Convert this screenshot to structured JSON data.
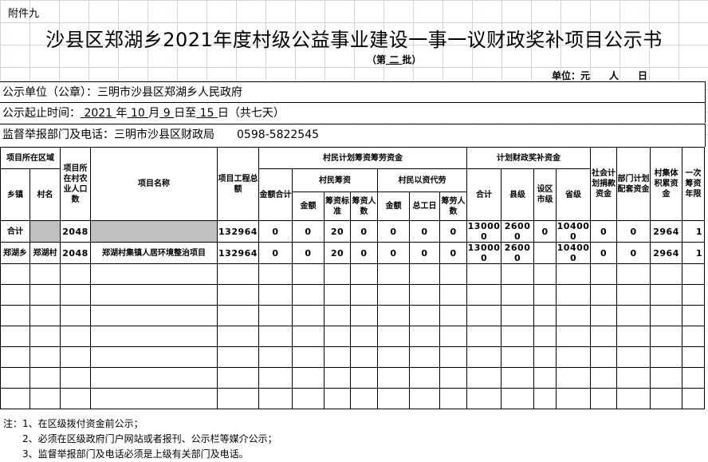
{
  "attachment": "附件九",
  "title": "沙县区郑湖乡2021年度村级公益事业建设一事一议财政奖补项目公示书",
  "batch": {
    "prefix": "（第",
    "value": "二",
    "suffix": "批）"
  },
  "unit": "单位：元　　人　　日",
  "info": {
    "publisher": "公示单位（公章）：三明市沙县区郑湖乡人民政府",
    "period_label": "公示起止时间：",
    "period": {
      "year": "2021",
      "y": "年",
      "month": "10",
      "m": "月",
      "day": "9",
      "d": "日至",
      "end": "15",
      "e": "日",
      "days": "（共七天）"
    },
    "supervisor": "监督举报部门及电话：三明市沙县区财政局　　0598-5822545"
  },
  "headers": {
    "region": "项目所在区域",
    "population": "项目所在村农业人口数",
    "name": "项目名称",
    "total": "项目工程总额",
    "villager_funds": "村民计划筹资筹劳资金",
    "fiscal": "计划财政奖补资金",
    "social": "社会计划捐款资金",
    "dept": "部门计划配套资金",
    "collective": "村集体积累资金",
    "years": "一次筹资年限",
    "town": "乡镇",
    "village": "村名",
    "amount_total": "金额合计",
    "villager_raise": "村民筹资",
    "labor": "村民以资代劳",
    "f_total": "合计",
    "county": "县级",
    "city": "设区市级",
    "province": "省级",
    "r_amount": "金额",
    "r_std": "筹资标准",
    "r_people": "筹资人数",
    "l_amount": "金额",
    "l_days": "总工日",
    "l_people": "筹劳人数"
  },
  "rows": [
    {
      "town": "合计",
      "village": "",
      "population": "2048",
      "name": "",
      "total": "132964",
      "amount_total": "0",
      "r_amount": "0",
      "r_std": "20",
      "r_people": "0",
      "l_amount": "0",
      "l_days": "0",
      "l_people": "0",
      "f_total": "130000",
      "county": "26000",
      "city": "0",
      "province": "104000",
      "social": "0",
      "dept": "0",
      "collective": "2964",
      "years": "1"
    },
    {
      "town": "郑湖乡",
      "village": "郑湖村",
      "population": "2048",
      "name": "郑湖村集镇人居环境整治项目",
      "total": "132964",
      "amount_total": "0",
      "r_amount": "0",
      "r_std": "20",
      "r_people": "0",
      "l_amount": "0",
      "l_days": "0",
      "l_people": "0",
      "f_total": "130000",
      "county": "26000",
      "city": "",
      "province": "104000",
      "social": "0",
      "dept": "0",
      "collective": "2964",
      "years": "1"
    }
  ],
  "notes": [
    "注：1、在区级拨付资金前公示；",
    "　　2、必须在区级政府门户网站或者报刊、公示栏等媒介公示；",
    "　　3、监督举报部门及电话必须是上级有关部门及电话。"
  ]
}
